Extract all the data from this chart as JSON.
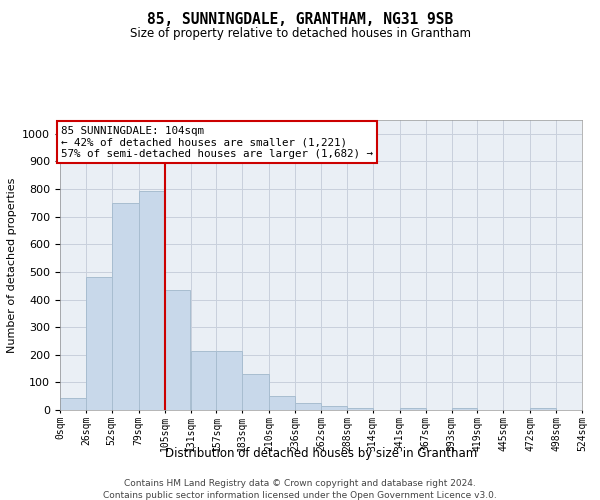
{
  "title": "85, SUNNINGDALE, GRANTHAM, NG31 9SB",
  "subtitle": "Size of property relative to detached houses in Grantham",
  "xlabel": "Distribution of detached houses by size in Grantham",
  "ylabel": "Number of detached properties",
  "bar_color": "#c8d8ea",
  "bar_edge_color": "#a8bdd0",
  "grid_color": "#c8d0dc",
  "annotation_line_color": "#cc0000",
  "annotation_box_color": "#cc0000",
  "property_size": 105,
  "smaller_pct": 42,
  "smaller_count": 1221,
  "larger_semi_pct": 57,
  "larger_semi_count": 1682,
  "bin_edges": [
    0,
    26,
    52,
    79,
    105,
    131,
    157,
    183,
    210,
    236,
    262,
    288,
    314,
    341,
    367,
    393,
    419,
    445,
    472,
    498,
    524
  ],
  "bin_labels": [
    "0sqm",
    "26sqm",
    "52sqm",
    "79sqm",
    "105sqm",
    "131sqm",
    "157sqm",
    "183sqm",
    "210sqm",
    "236sqm",
    "262sqm",
    "288sqm",
    "314sqm",
    "341sqm",
    "367sqm",
    "393sqm",
    "419sqm",
    "445sqm",
    "472sqm",
    "498sqm",
    "524sqm"
  ],
  "bar_heights": [
    43,
    483,
    750,
    793,
    435,
    215,
    215,
    130,
    50,
    27,
    13,
    8,
    0,
    7,
    0,
    7,
    0,
    0,
    8,
    0
  ],
  "ylim": [
    0,
    1050
  ],
  "yticks": [
    0,
    100,
    200,
    300,
    400,
    500,
    600,
    700,
    800,
    900,
    1000
  ],
  "footer1": "Contains HM Land Registry data © Crown copyright and database right 2024.",
  "footer2": "Contains public sector information licensed under the Open Government Licence v3.0.",
  "background_color": "#ffffff",
  "plot_bg_color": "#eaeff5"
}
